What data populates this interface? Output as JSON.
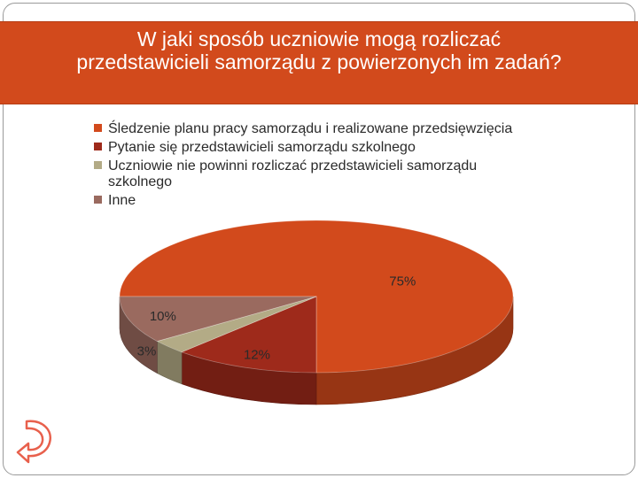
{
  "slide": {
    "title_line1": "W jaki sposób uczniowie mogą rozliczać",
    "title_line2": "przedstawicieli samorządu z powierzonych im zadań?"
  },
  "chart_data": {
    "type": "pie",
    "title": "W jaki sposób uczniowie mogą rozliczać przedstawicieli samorządu z powierzonych im zadań?",
    "legend_position": "top-left",
    "series": [
      {
        "name": "Śledzenie planu pracy samorządu i realizowane przedsięwzięcia",
        "value": 75,
        "label": "75%",
        "color": "#d24a1c"
      },
      {
        "name": "Pytanie się przedstawicieli samorządu szkolnego",
        "value": 12,
        "label": "12%",
        "color": "#9e2a1b"
      },
      {
        "name": "Uczniowie nie powinni rozliczać przedstawicieli samorządu szkolnego",
        "value": 3,
        "label": "3%",
        "color": "#b3ab86"
      },
      {
        "name": "Inne",
        "value": 10,
        "label": "10%",
        "color": "#9a6a5f"
      }
    ]
  },
  "nav": {
    "back_icon": "back-arrow-icon",
    "back_color": "#e8604c"
  }
}
